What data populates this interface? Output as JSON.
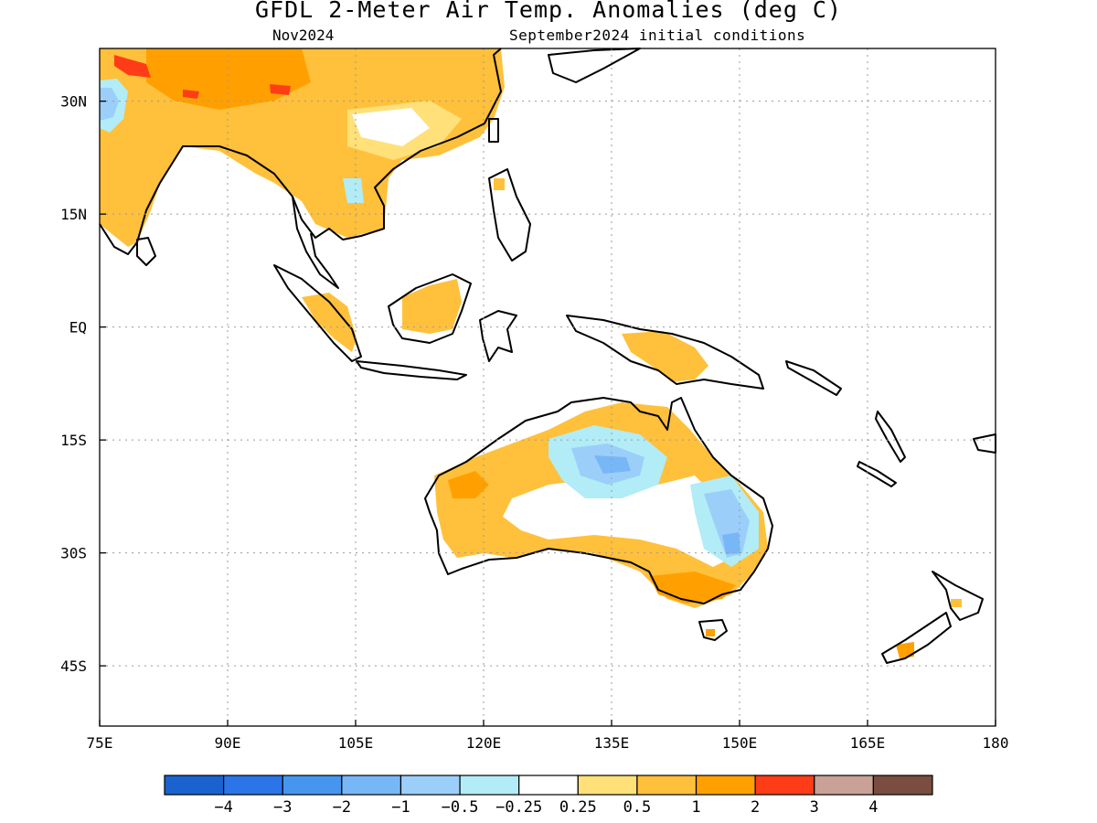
{
  "title": "GFDL 2-Meter Air Temp. Anomalies (deg C)",
  "subtitle_left": "Nov2024",
  "subtitle_right": "September2024 initial conditions",
  "map": {
    "lon_range": [
      75,
      180
    ],
    "lat_range": [
      -53,
      37
    ],
    "lon_ticks": [
      {
        "value": 75,
        "label": "75E"
      },
      {
        "value": 90,
        "label": "90E"
      },
      {
        "value": 105,
        "label": "105E"
      },
      {
        "value": 120,
        "label": "120E"
      },
      {
        "value": 135,
        "label": "135E"
      },
      {
        "value": 150,
        "label": "150E"
      },
      {
        "value": 165,
        "label": "165E"
      },
      {
        "value": 180,
        "label": "180"
      }
    ],
    "lat_ticks": [
      {
        "value": 30,
        "label": "30N"
      },
      {
        "value": 15,
        "label": "15N"
      },
      {
        "value": 0,
        "label": "EQ"
      },
      {
        "value": -15,
        "label": "15S"
      },
      {
        "value": -30,
        "label": "30S"
      },
      {
        "value": -45,
        "label": "45S"
      }
    ],
    "gridlines": true
  },
  "colorbar": {
    "colors": [
      "#1a62cf",
      "#2b75e8",
      "#4696f0",
      "#78b7f7",
      "#9ccefa",
      "#b2ecf6",
      "#ffffff",
      "#ffe079",
      "#ffc03b",
      "#ffa000",
      "#ff3c18",
      "#c9a196",
      "#7a4d40"
    ],
    "labels": [
      "-4",
      "-3",
      "-2",
      "-1",
      "-0.5",
      "-0.25",
      "0.25",
      "0.5",
      "1",
      "2",
      "3",
      "4"
    ]
  },
  "colors": {
    "land_outline": "#000000",
    "grid": "#9a9a9a"
  }
}
